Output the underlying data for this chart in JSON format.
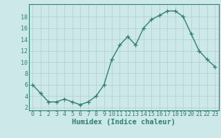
{
  "x": [
    0,
    1,
    2,
    3,
    4,
    5,
    6,
    7,
    8,
    9,
    10,
    11,
    12,
    13,
    14,
    15,
    16,
    17,
    18,
    19,
    20,
    21,
    22,
    23
  ],
  "y": [
    6.0,
    4.5,
    3.0,
    3.0,
    3.5,
    3.0,
    2.5,
    3.0,
    4.0,
    6.0,
    10.5,
    13.0,
    14.5,
    13.0,
    16.0,
    17.5,
    18.2,
    19.0,
    19.0,
    18.0,
    15.0,
    12.0,
    10.5,
    9.2
  ],
  "xlabel": "Humidex (Indice chaleur)",
  "ylabel": "",
  "xlim": [
    -0.5,
    23.5
  ],
  "ylim": [
    1.5,
    20.2
  ],
  "yticks": [
    2,
    4,
    6,
    8,
    10,
    12,
    14,
    16,
    18
  ],
  "xticks": [
    0,
    1,
    2,
    3,
    4,
    5,
    6,
    7,
    8,
    9,
    10,
    11,
    12,
    13,
    14,
    15,
    16,
    17,
    18,
    19,
    20,
    21,
    22,
    23
  ],
  "line_color": "#2e7d72",
  "marker_color": "#2e7d72",
  "bg_color": "#cce8e8",
  "grid_color": "#b0cccc",
  "axis_color": "#2e7d72",
  "text_color": "#2e7d72",
  "font_size": 6.0,
  "xlabel_fontsize": 7.5,
  "marker_size": 4.0,
  "line_width": 1.0
}
